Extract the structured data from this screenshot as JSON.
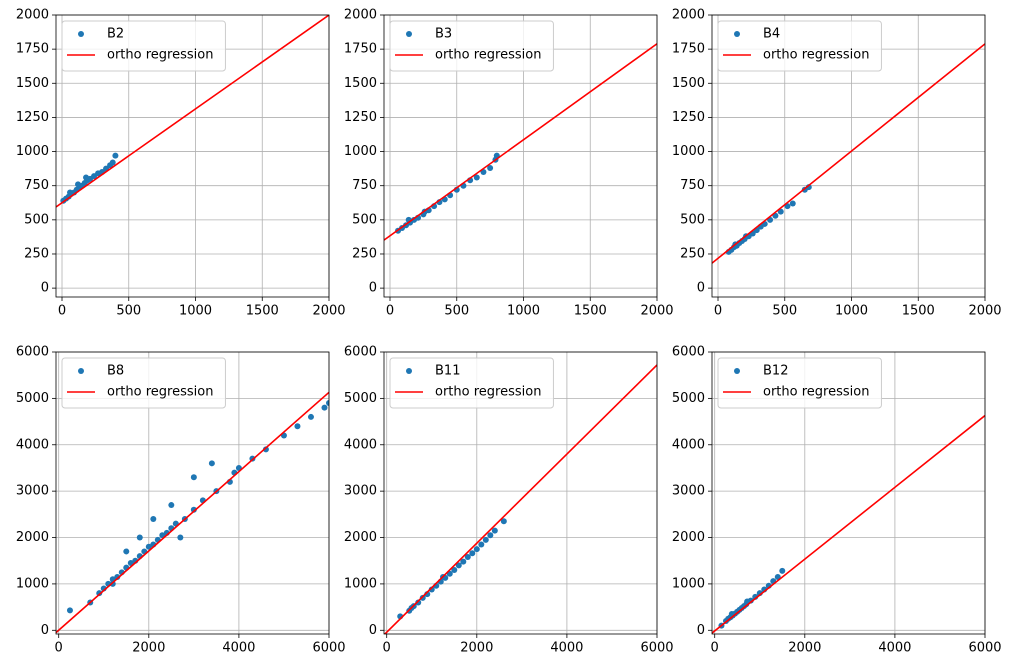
{
  "chart_data": [
    {
      "type": "scatter",
      "grid": true,
      "legend": "upper left",
      "xlim": [
        -45,
        2000
      ],
      "ylim": [
        -65,
        2000
      ],
      "xticks": [
        0,
        500,
        1000,
        1500,
        2000
      ],
      "yticks": [
        0,
        250,
        500,
        750,
        1000,
        1250,
        1500,
        1750,
        2000
      ],
      "series": [
        {
          "name": "B2",
          "type": "scatter",
          "color": "#1f77b4",
          "x": [
            10,
            30,
            50,
            70,
            90,
            110,
            130,
            150,
            170,
            190,
            210,
            240,
            270,
            300,
            330,
            360,
            380,
            400,
            60,
            120,
            180
          ],
          "values": [
            640,
            655,
            670,
            690,
            700,
            720,
            735,
            750,
            770,
            790,
            800,
            820,
            840,
            850,
            875,
            900,
            920,
            970,
            700,
            760,
            810
          ]
        },
        {
          "name": "ortho regression",
          "type": "line",
          "color": "#ff0000",
          "x": [
            -45,
            2000
          ],
          "values": [
            594,
            2000
          ]
        }
      ]
    },
    {
      "type": "scatter",
      "grid": true,
      "legend": "upper left",
      "xlim": [
        -45,
        2000
      ],
      "ylim": [
        -65,
        2000
      ],
      "xticks": [
        0,
        500,
        1000,
        1500,
        2000
      ],
      "yticks": [
        0,
        250,
        500,
        750,
        1000,
        1250,
        1500,
        1750,
        2000
      ],
      "series": [
        {
          "name": "B3",
          "type": "scatter",
          "color": "#1f77b4",
          "x": [
            60,
            90,
            120,
            150,
            180,
            210,
            250,
            290,
            330,
            370,
            410,
            450,
            500,
            550,
            600,
            650,
            700,
            750,
            790,
            800,
            140,
            260
          ],
          "values": [
            420,
            440,
            460,
            480,
            500,
            515,
            540,
            570,
            600,
            630,
            650,
            680,
            720,
            750,
            790,
            810,
            850,
            880,
            940,
            970,
            500,
            560
          ]
        },
        {
          "name": "ortho regression",
          "type": "line",
          "color": "#ff0000",
          "x": [
            -45,
            2000
          ],
          "values": [
            352,
            1789
          ]
        }
      ]
    },
    {
      "type": "scatter",
      "grid": true,
      "legend": "upper left",
      "xlim": [
        -45,
        2000
      ],
      "ylim": [
        -65,
        2000
      ],
      "xticks": [
        0,
        500,
        1000,
        1500,
        2000
      ],
      "yticks": [
        0,
        250,
        500,
        750,
        1000,
        1250,
        1500,
        1750,
        2000
      ],
      "series": [
        {
          "name": "B4",
          "type": "scatter",
          "color": "#1f77b4",
          "x": [
            80,
            100,
            120,
            140,
            160,
            180,
            200,
            230,
            260,
            290,
            320,
            350,
            390,
            430,
            470,
            520,
            560,
            650,
            680,
            130,
            210
          ],
          "values": [
            265,
            280,
            300,
            310,
            330,
            345,
            360,
            380,
            400,
            425,
            450,
            470,
            500,
            530,
            560,
            600,
            620,
            720,
            740,
            320,
            380
          ]
        },
        {
          "name": "ortho regression",
          "type": "line",
          "color": "#ff0000",
          "x": [
            -45,
            2000
          ],
          "values": [
            183,
            1789
          ]
        }
      ]
    },
    {
      "type": "scatter",
      "grid": true,
      "legend": "upper left",
      "xlim": [
        -60,
        6000
      ],
      "ylim": [
        -80,
        6000
      ],
      "xticks": [
        0,
        2000,
        4000,
        6000
      ],
      "yticks": [
        0,
        1000,
        2000,
        3000,
        4000,
        5000,
        6000
      ],
      "series": [
        {
          "name": "B8",
          "type": "scatter",
          "color": "#1f77b4",
          "x": [
            250,
            700,
            900,
            1000,
            1100,
            1200,
            1300,
            1400,
            1500,
            1600,
            1700,
            1800,
            1900,
            2000,
            2100,
            2200,
            2300,
            2400,
            2500,
            2600,
            2800,
            3000,
            3200,
            3500,
            3800,
            4000,
            4300,
            4600,
            5000,
            5300,
            5600,
            5900,
            6000,
            1500,
            1800,
            2100,
            2500,
            3000,
            3400,
            3900,
            1200,
            2700
          ],
          "values": [
            430,
            600,
            800,
            900,
            1000,
            1100,
            1150,
            1250,
            1350,
            1450,
            1500,
            1600,
            1700,
            1800,
            1850,
            1950,
            2050,
            2100,
            2200,
            2300,
            2400,
            2600,
            2800,
            3000,
            3200,
            3500,
            3700,
            3900,
            4200,
            4400,
            4600,
            4800,
            4900,
            1700,
            2000,
            2400,
            2700,
            3300,
            3600,
            3400,
            1000,
            2000
          ]
        },
        {
          "name": "ortho regression",
          "type": "line",
          "color": "#ff0000",
          "x": [
            -60,
            6000
          ],
          "values": [
            -50,
            5130
          ]
        }
      ]
    },
    {
      "type": "scatter",
      "grid": true,
      "legend": "upper left",
      "xlim": [
        -60,
        6000
      ],
      "ylim": [
        -80,
        6000
      ],
      "xticks": [
        0,
        2000,
        4000,
        6000
      ],
      "yticks": [
        0,
        1000,
        2000,
        3000,
        4000,
        5000,
        6000
      ],
      "series": [
        {
          "name": "B11",
          "type": "scatter",
          "color": "#1f77b4",
          "x": [
            300,
            500,
            600,
            700,
            800,
            900,
            1000,
            1100,
            1200,
            1300,
            1400,
            1500,
            1600,
            1700,
            1800,
            1900,
            2000,
            2100,
            2200,
            2300,
            2400,
            2600,
            550,
            1250
          ],
          "values": [
            300,
            420,
            520,
            600,
            700,
            780,
            880,
            960,
            1050,
            1130,
            1220,
            1300,
            1400,
            1480,
            1580,
            1660,
            1750,
            1850,
            1950,
            2050,
            2150,
            2350,
            480,
            1150
          ]
        },
        {
          "name": "ortho regression",
          "type": "line",
          "color": "#ff0000",
          "x": [
            -60,
            6000
          ],
          "values": [
            -100,
            5720
          ]
        }
      ]
    },
    {
      "type": "scatter",
      "grid": true,
      "legend": "upper left",
      "xlim": [
        -60,
        6000
      ],
      "ylim": [
        -80,
        6000
      ],
      "xticks": [
        0,
        2000,
        4000,
        6000
      ],
      "yticks": [
        0,
        1000,
        2000,
        3000,
        4000,
        5000,
        6000
      ],
      "series": [
        {
          "name": "B12",
          "type": "scatter",
          "color": "#1f77b4",
          "x": [
            150,
            250,
            300,
            350,
            400,
            450,
            500,
            550,
            600,
            650,
            700,
            800,
            900,
            1000,
            1100,
            1200,
            1300,
            1400,
            1500,
            380,
            720
          ],
          "values": [
            100,
            200,
            250,
            280,
            320,
            360,
            400,
            440,
            480,
            520,
            560,
            640,
            720,
            800,
            880,
            960,
            1060,
            1150,
            1280,
            350,
            620
          ]
        },
        {
          "name": "ortho regression",
          "type": "line",
          "color": "#ff0000",
          "x": [
            -60,
            6000
          ],
          "values": [
            -60,
            4630
          ]
        }
      ]
    }
  ]
}
